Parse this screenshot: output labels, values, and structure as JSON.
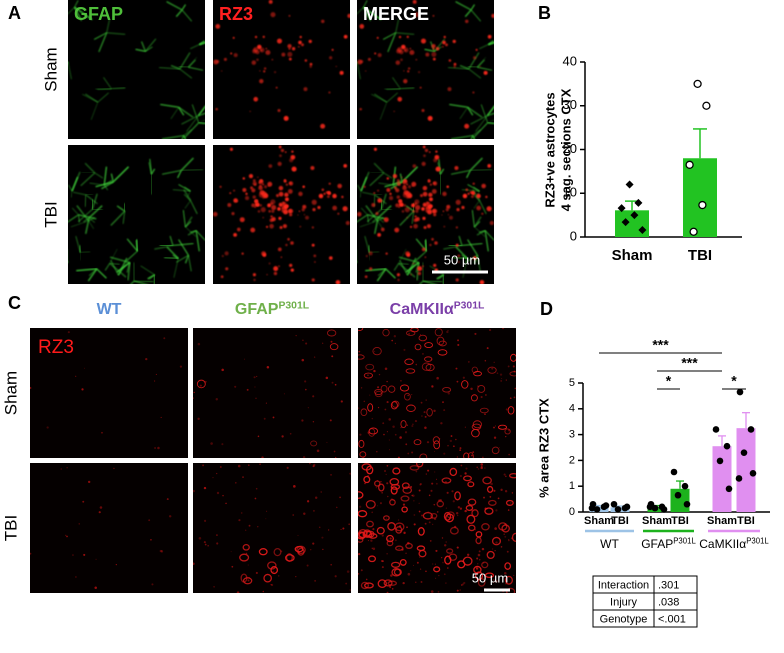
{
  "panel_labels": [
    "A",
    "B",
    "C",
    "D"
  ],
  "panel_a": {
    "channels": [
      {
        "text": "GFAP",
        "color": "#4fbf3a"
      },
      {
        "text": "RZ3",
        "color": "#ff2020"
      },
      {
        "text": "MERGE",
        "color": "#ffffff"
      }
    ],
    "rows": [
      "Sham",
      "TBI"
    ],
    "scale_bar": "50 µm"
  },
  "panel_c": {
    "stain": "RZ3",
    "columns": [
      {
        "base": "WT",
        "color": "#5b8fd6"
      },
      {
        "base": "GFAP",
        "sup": "P301L",
        "color": "#6fb04a"
      },
      {
        "base": "CaMKIIα",
        "sup": "P301L",
        "color": "#7b3fa8"
      }
    ],
    "rows": [
      "Sham",
      "TBI"
    ],
    "scale_bar": "50 µm"
  },
  "chart_data": [
    {
      "type": "bar",
      "ylabel": [
        "RZ3+ve astrocytes",
        "4 sag. sections CTX"
      ],
      "categories": [
        "Sham",
        "TBI"
      ],
      "values": [
        6.1,
        18
      ],
      "errors": [
        2.1,
        6.7
      ],
      "points": [
        [
          12,
          7.8,
          6.6,
          5,
          3.4,
          1.6
        ],
        [
          35,
          30,
          16.5,
          7.3,
          1.2
        ]
      ],
      "markers": [
        "diamond",
        "circle"
      ],
      "color": "#22c322",
      "ylim": [
        0,
        40
      ],
      "yticks": [
        0,
        10,
        20,
        30,
        40
      ]
    },
    {
      "type": "grouped_bar",
      "ylabel": "% area RZ3 CTX",
      "groups": [
        {
          "name": {
            "base": "WT"
          },
          "color": "#9dc3e6",
          "categories": [
            "Sham",
            "TBI"
          ],
          "values": [
            0.2,
            0.18
          ],
          "errors": [
            0.05,
            0.05
          ],
          "points": [
            [
              0.3,
              0.2,
              0.1,
              0.25,
              0.15
            ],
            [
              0.3,
              0.15,
              0.1,
              0.2
            ]
          ]
        },
        {
          "name": {
            "base": "GFAP",
            "sup": "P301L"
          },
          "color": "#1db21d",
          "categories": [
            "Sham",
            "TBI"
          ],
          "values": [
            0.2,
            0.9
          ],
          "errors": [
            0.05,
            0.3
          ],
          "points": [
            [
              0.3,
              0.2,
              0.15,
              0.1,
              0.2
            ],
            [
              1.55,
              1.0,
              0.65,
              0.3
            ]
          ]
        },
        {
          "name": {
            "base": "CaMKIIα",
            "sup": "P301L"
          },
          "color": "#e08ff0",
          "categories": [
            "Sham",
            "TBI"
          ],
          "values": [
            2.55,
            3.25
          ],
          "errors": [
            0.4,
            0.6
          ],
          "points": [
            [
              3.2,
              2.55,
              1.98,
              0.9
            ],
            [
              4.65,
              3.2,
              2.3,
              1.5,
              1.3
            ]
          ]
        }
      ],
      "ylim": [
        0,
        5
      ],
      "yticks": [
        0,
        1,
        2,
        3,
        4,
        5
      ],
      "annotations": [
        "***",
        "***",
        "*",
        "*"
      ]
    }
  ],
  "stats_table": {
    "rows": [
      [
        "Interaction",
        ".301"
      ],
      [
        "Injury",
        ".038"
      ],
      [
        "Genotype",
        "<.001"
      ]
    ]
  }
}
